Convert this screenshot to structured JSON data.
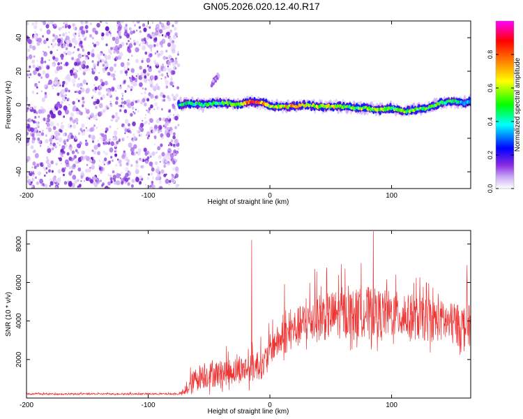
{
  "title": "GN05.2026.020.12.40.R17",
  "chart_data": [
    {
      "type": "heatmap",
      "panel": "spectrogram",
      "xlabel": "Height of straight line (km)",
      "ylabel": "Frequency (Hz)",
      "xlim": [
        -200,
        165
      ],
      "ylim": [
        -50,
        50
      ],
      "xticks": [
        -200,
        -100,
        0,
        100
      ],
      "yticks": [
        -40,
        -20,
        0,
        20,
        40
      ],
      "colorbar": {
        "label": "Normalized spectral amplitude",
        "range": [
          0,
          1
        ],
        "ticks": [
          0.0,
          0.2,
          0.4,
          0.6,
          0.8
        ],
        "colors": [
          "#ffffff",
          "#8a2be2",
          "#0000ff",
          "#00ffff",
          "#00ff00",
          "#ffff00",
          "#ff8000",
          "#ff0000",
          "#ff00ff"
        ]
      },
      "noise_region_x": [
        -200,
        -75
      ],
      "signal_track": {
        "x": [
          -75,
          -65,
          -55,
          -45,
          -35,
          -25,
          -15,
          -10,
          -5,
          0,
          10,
          20,
          30,
          40,
          50,
          60,
          70,
          80,
          90,
          100,
          110,
          120,
          130,
          140,
          150,
          160,
          165
        ],
        "freq_hz": [
          0,
          1,
          0,
          1,
          1,
          0,
          2,
          1,
          1,
          -1,
          -1,
          -1,
          0,
          -1,
          -1,
          -1,
          -2,
          -2,
          -3,
          -2,
          -4,
          -3,
          -2,
          1,
          2,
          1,
          2
        ],
        "amplitude": [
          0.4,
          0.45,
          0.45,
          0.5,
          0.45,
          0.5,
          0.9,
          0.8,
          0.7,
          0.55,
          0.6,
          0.75,
          0.6,
          0.55,
          0.6,
          0.55,
          0.5,
          0.6,
          0.55,
          0.5,
          0.55,
          0.5,
          0.5,
          0.45,
          0.45,
          0.4,
          0.4
        ]
      },
      "side_feature": {
        "x": [
          -48,
          -42
        ],
        "freq_hz": [
          12,
          18
        ]
      }
    },
    {
      "type": "line",
      "panel": "snr",
      "xlabel": "Height of straight line (km)",
      "ylabel": "SNR (10 * v/v)",
      "xlim": [
        -200,
        165
      ],
      "ylim": [
        0,
        8700
      ],
      "xticks": [
        -200,
        -100,
        0,
        100
      ],
      "yticks": [
        2000,
        4000,
        6000,
        8000
      ],
      "color": "#ee3333",
      "envelope": {
        "x": [
          -200,
          -75,
          -70,
          -65,
          -60,
          -50,
          -40,
          -30,
          -20,
          -15,
          -10,
          -5,
          0,
          5,
          10,
          15,
          20,
          25,
          30,
          40,
          50,
          60,
          70,
          80,
          90,
          100,
          110,
          120,
          130,
          140,
          150,
          160,
          165
        ],
        "base": [
          200,
          200,
          250,
          500,
          900,
          1000,
          1100,
          1200,
          1300,
          1300,
          1500,
          1500,
          2300,
          2600,
          2800,
          3000,
          3300,
          3400,
          3600,
          3800,
          3900,
          4000,
          4000,
          4100,
          4000,
          4000,
          3900,
          3800,
          3700,
          3700,
          3500,
          3400,
          3400
        ],
        "amp": [
          100,
          100,
          300,
          1200,
          1400,
          1500,
          1500,
          1500,
          1600,
          1600,
          1700,
          1600,
          1700,
          1800,
          1900,
          2000,
          2200,
          2400,
          2600,
          2800,
          2800,
          2900,
          2800,
          2900,
          2800,
          2700,
          2600,
          2500,
          2500,
          2400,
          2400,
          2400,
          2400
        ]
      },
      "spikes": [
        {
          "x": -15,
          "y": 8200
        },
        {
          "x": 85,
          "y": 8650
        },
        {
          "x": 162,
          "y": 6900
        },
        {
          "x": 12,
          "y": 5900
        },
        {
          "x": 37,
          "y": 6700
        },
        {
          "x": 75,
          "y": 7000
        }
      ]
    }
  ]
}
